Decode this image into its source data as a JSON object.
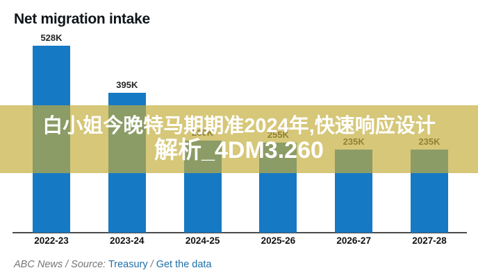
{
  "title": "Net migration intake",
  "chart_data": {
    "type": "bar",
    "title": "Net migration intake",
    "categories": [
      "2022-23",
      "2023-24",
      "2024-25",
      "2025-26",
      "2026-27",
      "2027-28"
    ],
    "values": [
      528,
      395,
      260,
      255,
      235,
      235
    ],
    "value_labels": [
      "528K",
      "395K",
      "260K",
      "255K",
      "235K",
      "235K"
    ],
    "unit": "thousands of people (K)",
    "ylim": [
      0,
      560
    ],
    "grid": false,
    "legend": false,
    "bar_color": "#1679c4",
    "xlabel": "",
    "ylabel": ""
  },
  "overlay": {
    "line1": "白小姐今晚特马期期准2024年,快速响应设计",
    "line2": "解析_4DM3.260",
    "background_color": "#c2ac3a",
    "text_color": "#ffffff"
  },
  "footer": {
    "prefix": "ABC News / Source:",
    "source_link": "Treasury",
    "separator": "/",
    "data_link": "Get the data",
    "link_color": "#1e6fa9"
  }
}
